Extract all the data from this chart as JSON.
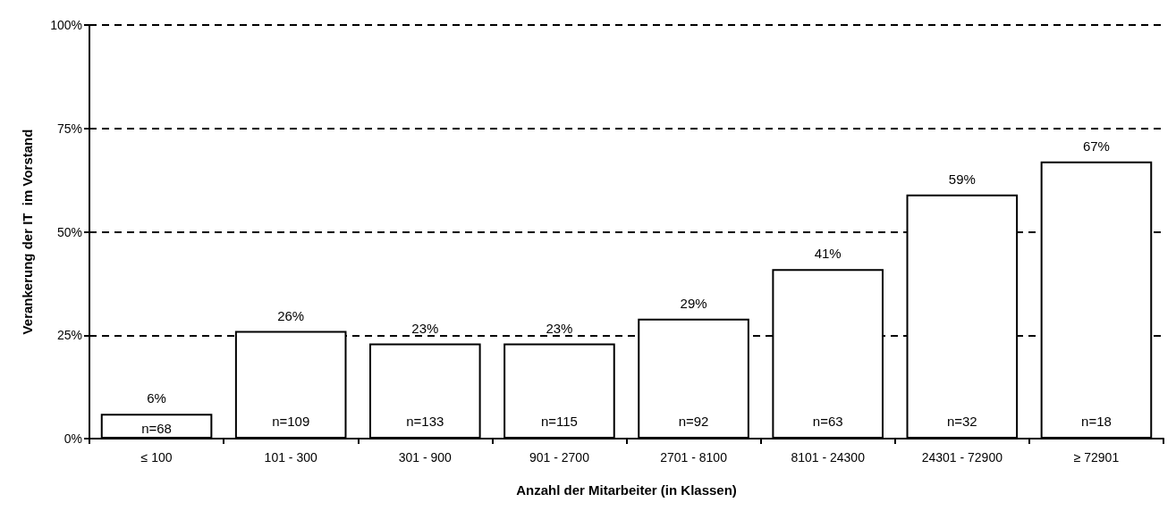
{
  "chart_data": {
    "type": "bar",
    "xlabel": "Anzahl der Mitarbeiter (in Klassen)",
    "ylabel": "Verankerung der IT  im Vorstand",
    "categories": [
      "≤ 100",
      "101 - 300",
      "301 - 900",
      "901 - 2700",
      "2701 - 8100",
      "8101 - 24300",
      "24301 - 72900",
      "≥ 72901"
    ],
    "values": [
      6,
      26,
      23,
      23,
      29,
      41,
      59,
      67
    ],
    "value_labels": [
      "6%",
      "26%",
      "23%",
      "23%",
      "29%",
      "41%",
      "59%",
      "67%"
    ],
    "color": "#ffffff",
    "ylim": [
      0,
      100
    ],
    "yticks": [
      {
        "value": 0,
        "label": "0%"
      },
      {
        "value": 25,
        "label": "25%"
      },
      {
        "value": 50,
        "label": "50%"
      },
      {
        "value": 75,
        "label": "75%"
      },
      {
        "value": 100,
        "label": "100%"
      }
    ],
    "grid": "y",
    "annotations": [
      "n=68",
      "n=109",
      "n=133",
      "n=115",
      "n=92",
      "n=63",
      "n=32",
      "n=18"
    ]
  }
}
